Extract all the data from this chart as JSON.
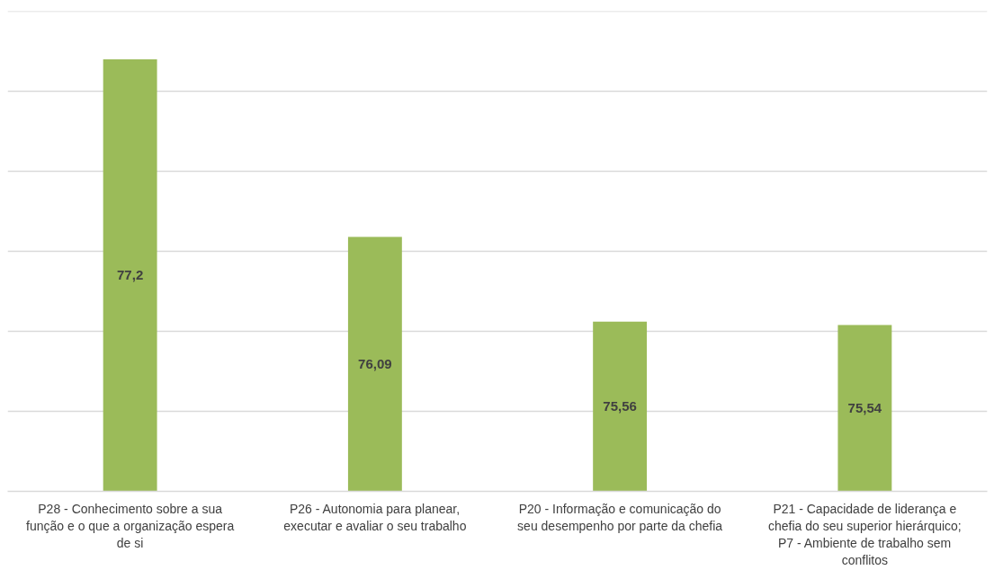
{
  "chart_data": {
    "type": "bar",
    "categories": [
      "P28 - Conhecimento sobre a sua função e o que a organização espera de si",
      "P26 - Autonomia para planear, executar e avaliar o seu trabalho",
      "P20 - Informação e comunicação do seu desempenho por parte da chefia",
      "P21 - Capacidade de liderança e chefia do seu superior hierárquico; P7 - Ambiente de trabalho sem conflitos"
    ],
    "values": [
      77.2,
      76.09,
      75.56,
      75.54
    ],
    "value_labels": [
      "77,2",
      "76,09",
      "75,56",
      "75,54"
    ],
    "color": "#9bbb59",
    "ylim": [
      74.5,
      77.5
    ],
    "yticks": [
      {
        "value": 74.5,
        "label": null
      },
      {
        "value": 75,
        "label": null
      },
      {
        "value": 75.5,
        "label": null
      },
      {
        "value": 76,
        "label": null
      },
      {
        "value": 76.5,
        "label": null
      },
      {
        "value": 77,
        "label": null
      },
      {
        "value": 77.5,
        "label": null
      }
    ],
    "grid": "y",
    "tick_labels": "x"
  }
}
